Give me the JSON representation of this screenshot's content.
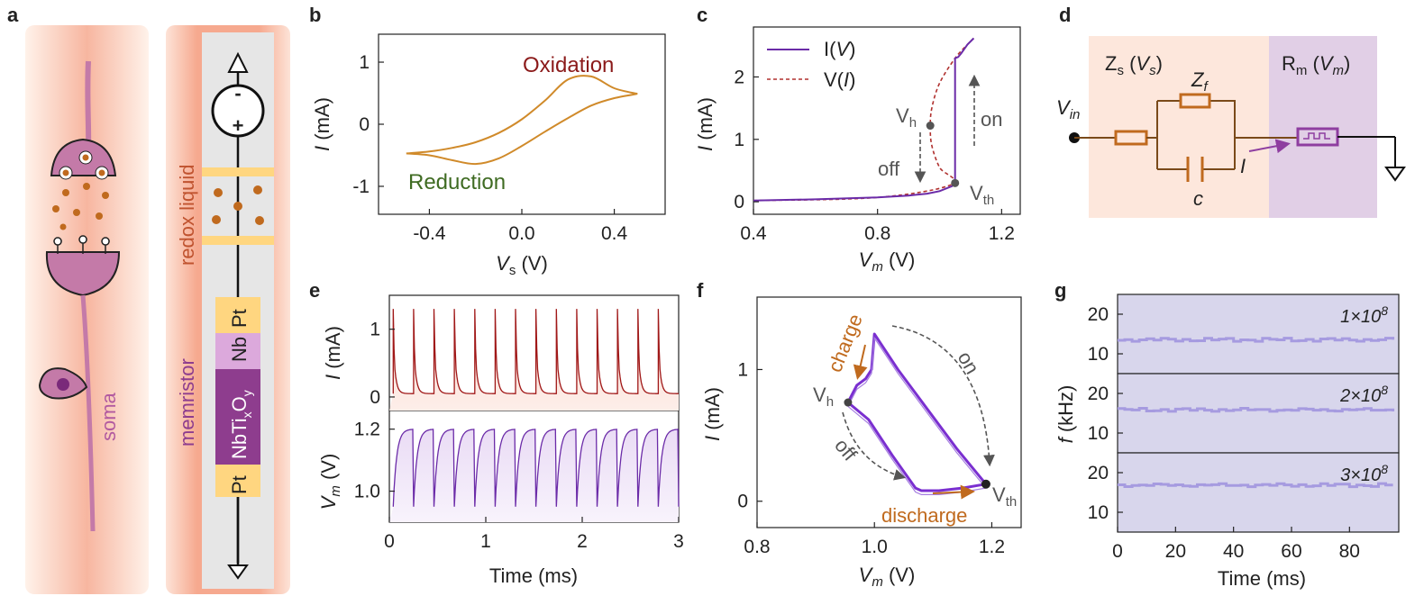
{
  "panels": [
    "a",
    "b",
    "c",
    "d",
    "e",
    "f",
    "g"
  ],
  "colors": {
    "oxidation": "#8b1a1a",
    "reduction": "#3f6b22",
    "cv_curve": "#d08a2a",
    "iv_line": "#6b2ba8",
    "vi_dashed": "#b0312f",
    "circuit_copper": "#c06a1e",
    "circuit_purple": "#8e3ea0",
    "soma_pink": "#c47aa8",
    "memristor_dark": "#8e3d8e",
    "pt_yellow": "#ffd680",
    "g_bg": "#d8d6ec",
    "g_trace": "#a69be0"
  },
  "panel_a": {
    "soma_label": "soma",
    "redox_label": "redox liquid",
    "memristor_label": "memristor",
    "minus": "-",
    "plus": "+",
    "layers": [
      "Pt",
      "Nb",
      "NbTi",
      "x",
      "O",
      "y",
      "Pt"
    ]
  },
  "panel_b": {
    "oxidation": "Oxidation",
    "reduction": "Reduction",
    "xlabel_var": "V",
    "xlabel_sub": "s",
    "xlabel_unit": " (V)",
    "ylabel_var": "I",
    "ylabel_unit": " (mA)"
  },
  "panel_c": {
    "legend_iv_pre": "I(",
    "legend_iv_var": "V",
    "legend_iv_post": ")",
    "legend_vi_pre": "V(",
    "legend_vi_var": "I",
    "legend_vi_post": ")",
    "vh": "V",
    "vh_sub": "h",
    "vth": "V",
    "vth_sub": "th",
    "on": "on",
    "off": "off",
    "xlabel_var": "V",
    "xlabel_sub": "m",
    "xlabel_unit": " (V)",
    "ylabel_var": "I",
    "ylabel_unit": " (mA)"
  },
  "panel_d": {
    "zs": "Z",
    "zs_sub": "s",
    "zs_arg_pre": " (",
    "zs_arg": "V",
    "zs_arg_sub": "s",
    "zs_arg_post": ")",
    "rm": "R",
    "rm_sub": "m",
    "rm_arg_pre": " (",
    "rm_arg": "V",
    "rm_arg_sub": "m",
    "rm_arg_post": ")",
    "zf": "Z",
    "zf_sub": "f",
    "c": "c",
    "vin": "V",
    "vin_sub": "in",
    "i": "I"
  },
  "panel_e": {
    "i_ylabel_var": "I",
    "i_ylabel_unit": " (mA)",
    "v_ylabel_var": "V",
    "v_ylabel_sub": "m",
    "v_ylabel_unit": " (V)",
    "xlabel": "Time (ms)"
  },
  "panel_f": {
    "charge": "charge",
    "discharge": "discharge",
    "on": "on",
    "off": "off",
    "vh": "V",
    "vh_sub": "h",
    "vth": "V",
    "vth_sub": "th",
    "xlabel_var": "V",
    "xlabel_sub": "m",
    "xlabel_unit": " (V)",
    "ylabel_var": "I",
    "ylabel_unit": " (mA)"
  },
  "panel_g": {
    "rows": [
      {
        "mant": "1",
        "exp": "8"
      },
      {
        "mant": "2",
        "exp": "8"
      },
      {
        "mant": "3",
        "exp": "8"
      }
    ],
    "times": "×10",
    "ylabel_var": "f",
    "ylabel_unit": " (kHz)",
    "xlabel": "Time (ms)"
  },
  "chart_data": [
    {
      "panel": "b",
      "type": "line",
      "xlabel": "Vs (V)",
      "ylabel": "I (mA)",
      "xlim": [
        -0.62,
        0.62
      ],
      "ylim": [
        -1.45,
        1.45
      ],
      "xticks": [
        -0.4,
        0.0,
        0.4
      ],
      "yticks": [
        -1,
        0,
        1
      ],
      "series": [
        {
          "name": "Oxidation",
          "x": [
            -0.5,
            -0.4,
            -0.3,
            -0.2,
            -0.1,
            0.0,
            0.1,
            0.2,
            0.3,
            0.4,
            0.5
          ],
          "y": [
            -0.47,
            -0.44,
            -0.38,
            -0.29,
            -0.14,
            0.08,
            0.38,
            0.72,
            0.77,
            0.58,
            0.49
          ]
        },
        {
          "name": "Reduction",
          "x": [
            0.5,
            0.4,
            0.3,
            0.2,
            0.1,
            0.0,
            -0.1,
            -0.2,
            -0.3,
            -0.4,
            -0.5
          ],
          "y": [
            0.49,
            0.42,
            0.3,
            0.1,
            -0.12,
            -0.35,
            -0.55,
            -0.64,
            -0.58,
            -0.5,
            -0.47
          ]
        }
      ]
    },
    {
      "panel": "c",
      "type": "line",
      "xlabel": "Vm (V)",
      "ylabel": "I (mA)",
      "xlim": [
        0.4,
        1.26
      ],
      "ylim": [
        -0.2,
        2.8
      ],
      "xticks": [
        0.4,
        0.8,
        1.2
      ],
      "yticks": [
        0,
        1,
        2
      ],
      "series": [
        {
          "name": "I(V)",
          "x": [
            0.4,
            0.6,
            0.8,
            0.9,
            0.96,
            1.0,
            1.04,
            1.05,
            1.05,
            1.06,
            1.07,
            1.09,
            1.11
          ],
          "y": [
            0.02,
            0.04,
            0.07,
            0.1,
            0.13,
            0.17,
            0.25,
            0.3,
            2.3,
            2.32,
            2.38,
            2.52,
            2.62
          ]
        },
        {
          "name": "V(I)",
          "x": [
            0.4,
            0.8,
            1.04,
            1.0,
            0.975,
            0.97,
            0.975,
            1.0,
            1.05,
            1.09,
            1.11
          ],
          "y": [
            0.02,
            0.07,
            0.28,
            0.55,
            0.9,
            1.2,
            1.5,
            1.9,
            2.3,
            2.52,
            2.62
          ]
        }
      ],
      "points": [
        {
          "name": "Vh",
          "x": 0.97,
          "y": 1.22
        },
        {
          "name": "Vth",
          "x": 1.05,
          "y": 0.3
        }
      ]
    },
    {
      "panel": "e",
      "type": "line",
      "xlabel": "Time (ms)",
      "xlim": [
        0,
        3
      ],
      "xticks": [
        0,
        1,
        2,
        3
      ],
      "subplots": [
        {
          "ylabel": "I (mA)",
          "ylim": [
            -0.2,
            1.5
          ],
          "yticks": [
            0,
            1
          ],
          "spikes": 14,
          "peak": 1.3,
          "baseline": 0.05
        },
        {
          "ylabel": "Vm (V)",
          "ylim": [
            0.9,
            1.26
          ],
          "yticks": [
            1.0,
            1.2
          ],
          "spikes": 14,
          "high": 1.2,
          "low": 0.95
        }
      ]
    },
    {
      "panel": "f",
      "type": "line",
      "xlabel": "Vm (V)",
      "ylabel": "I (mA)",
      "xlim": [
        0.8,
        1.25
      ],
      "ylim": [
        -0.2,
        1.55
      ],
      "xticks": [
        0.8,
        1.0,
        1.2
      ],
      "yticks": [
        0,
        1
      ],
      "series": [
        {
          "name": "loop",
          "x": [
            0.955,
            0.97,
            0.985,
            0.995,
            1.0,
            1.04,
            1.09,
            1.14,
            1.19,
            1.15,
            1.11,
            1.08,
            1.07,
            1.03,
            0.99,
            0.955
          ],
          "y": [
            0.75,
            0.88,
            0.93,
            1.0,
            1.27,
            1.0,
            0.7,
            0.4,
            0.13,
            0.1,
            0.08,
            0.08,
            0.1,
            0.35,
            0.62,
            0.75
          ]
        }
      ],
      "points": [
        {
          "name": "Vh",
          "x": 0.955,
          "y": 0.75
        },
        {
          "name": "Vth",
          "x": 1.19,
          "y": 0.13
        }
      ]
    },
    {
      "panel": "g",
      "type": "heatmap",
      "xlabel": "Time (ms)",
      "ylabel": "f (kHz)",
      "xlim": [
        0,
        97
      ],
      "xticks": [
        0,
        20,
        40,
        60,
        80
      ],
      "subplots": [
        {
          "label": "1×10^8",
          "ylim": [
            5,
            25
          ],
          "yticks": [
            10,
            20
          ],
          "f_mean": 13.5
        },
        {
          "label": "2×10^8",
          "ylim": [
            5,
            25
          ],
          "yticks": [
            10,
            20
          ],
          "f_mean": 15.8
        },
        {
          "label": "3×10^8",
          "ylim": [
            5,
            25
          ],
          "yticks": [
            10,
            20
          ],
          "f_mean": 16.8
        }
      ]
    }
  ]
}
